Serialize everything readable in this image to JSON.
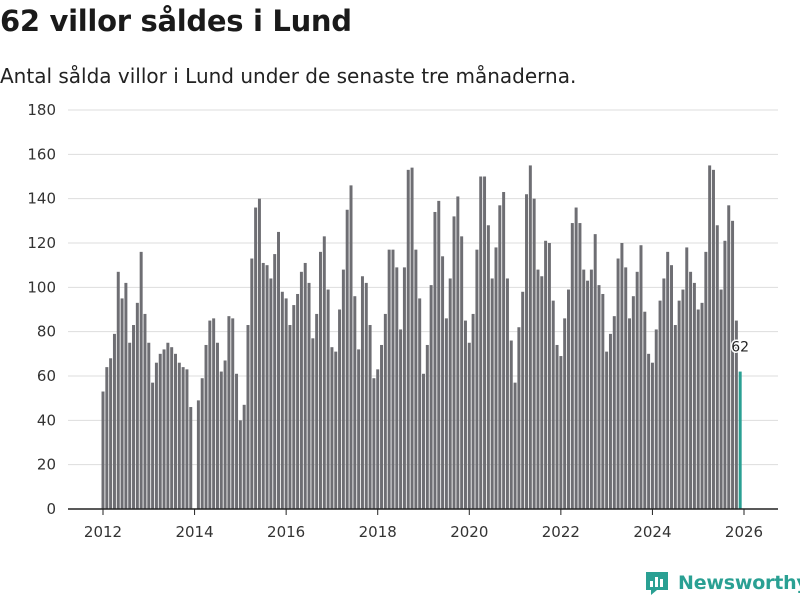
{
  "header": {
    "title": "62 villor såldes i Lund",
    "subtitle": "Antal sålda villor i Lund under de senaste tre månaderna."
  },
  "brand": {
    "name": "Newsworthy",
    "icon": "newsworthy-logo-icon"
  },
  "colors": {
    "bar": "#6e6e73",
    "highlight": "#2aa093",
    "grid": "#dddddd",
    "text": "#333333",
    "axis": "#222222"
  },
  "chart_data": {
    "type": "bar",
    "title": "62 villor såldes i Lund",
    "xlabel": "",
    "ylabel": "",
    "ylim": [
      0,
      180
    ],
    "yticks": [
      0,
      20,
      40,
      60,
      80,
      100,
      120,
      140,
      160,
      180
    ],
    "xticks": [
      "2012",
      "2014",
      "2016",
      "2018",
      "2020",
      "2022",
      "2024",
      "2026"
    ],
    "x_start": "2012-01",
    "x_end": "2026-01",
    "highlight_label": "62",
    "series": [
      {
        "name": "Antal sålda villor",
        "values": [
          53,
          64,
          68,
          79,
          107,
          95,
          102,
          75,
          83,
          93,
          116,
          88,
          75,
          57,
          66,
          70,
          72,
          75,
          73,
          70,
          66,
          64,
          63,
          46,
          0,
          49,
          59,
          74,
          85,
          86,
          75,
          62,
          67,
          87,
          86,
          61,
          40,
          47,
          83,
          113,
          136,
          140,
          111,
          110,
          104,
          115,
          125,
          98,
          95,
          83,
          92,
          97,
          107,
          111,
          102,
          77,
          88,
          116,
          123,
          99,
          73,
          71,
          90,
          108,
          135,
          146,
          96,
          72,
          105,
          102,
          83,
          59,
          63,
          74,
          88,
          117,
          117,
          109,
          81,
          109,
          153,
          154,
          117,
          95,
          61,
          74,
          101,
          134,
          139,
          114,
          86,
          104,
          132,
          141,
          123,
          85,
          75,
          88,
          117,
          150,
          150,
          128,
          104,
          118,
          137,
          143,
          104,
          76,
          57,
          82,
          98,
          142,
          155,
          140,
          108,
          105,
          121,
          120,
          94,
          74,
          69,
          86,
          99,
          129,
          136,
          129,
          108,
          103,
          108,
          124,
          101,
          97,
          71,
          79,
          87,
          113,
          120,
          109,
          86,
          96,
          107,
          119,
          89,
          70,
          66,
          81,
          94,
          104,
          116,
          110,
          83,
          94,
          99,
          118,
          107,
          102,
          90,
          93,
          116,
          155,
          153,
          128,
          99,
          121,
          137,
          130,
          85,
          62
        ]
      }
    ]
  }
}
